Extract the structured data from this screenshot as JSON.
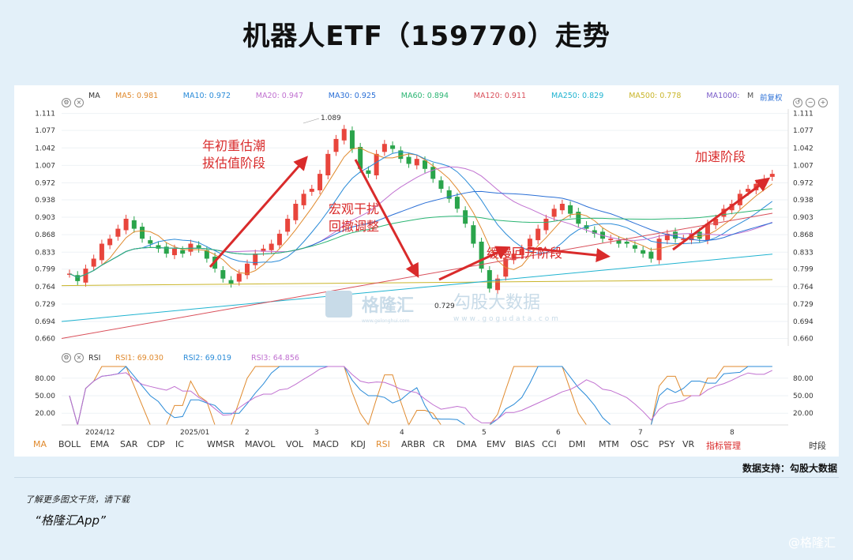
{
  "page": {
    "title": "机器人ETF（159770）走势",
    "credit": "数据支持：勾股大数据",
    "download_line1": "了解更多图文干货，请下载",
    "download_line2": "“格隆汇App”",
    "watermark_bottom_right": "@格隆汇",
    "watermark_center_1": "格隆汇",
    "watermark_center_1_sub": "www.gelonghui.com",
    "watermark_center_2": "勾股大数据",
    "watermark_center_2_sub": "w w w . g o g u d a t a . c o m"
  },
  "toolbar": {
    "ma_label": "MA",
    "items": [
      {
        "label": "MA5:",
        "value": "0.981",
        "color": "#e08a2e"
      },
      {
        "label": "MA10:",
        "value": "0.972",
        "color": "#2a8bd8"
      },
      {
        "label": "MA20:",
        "value": "0.947",
        "color": "#c070d0"
      },
      {
        "label": "MA30:",
        "value": "0.925",
        "color": "#2a6fd6"
      },
      {
        "label": "MA60:",
        "value": "0.894",
        "color": "#2bb573"
      },
      {
        "label": "MA120:",
        "value": "0.911",
        "color": "#d94f5a"
      },
      {
        "label": "MA250:",
        "value": "0.829",
        "color": "#1fb3d0"
      },
      {
        "label": "MA500:",
        "value": "0.778",
        "color": "#c9b52a"
      },
      {
        "label": "MA1000:",
        "value": "",
        "color": "#7a5cc9"
      }
    ],
    "right_m": "M",
    "right_label": "前复权"
  },
  "rsi_toolbar": {
    "label": "RSI",
    "items": [
      {
        "label": "RSI1:",
        "value": "69.030",
        "color": "#e08a2e"
      },
      {
        "label": "RSI2:",
        "value": "69.019",
        "color": "#2a8bd8"
      },
      {
        "label": "RSI3:",
        "value": "64.856",
        "color": "#c070d0"
      }
    ]
  },
  "indicators": [
    "MA",
    "BOLL",
    "EMA",
    "SAR",
    "CDP",
    "IC",
    "WMSR",
    "MAVOL",
    "VOL",
    "MACD",
    "KDJ",
    "RSI",
    "ARBR",
    "CR",
    "DMA",
    "EMV",
    "BIAS",
    "CCI",
    "DMI",
    "MTM",
    "OSC",
    "PSY",
    "VR",
    "指标管理",
    "时段"
  ],
  "chart_data": {
    "type": "candlestick",
    "title": "机器人ETF（159770）走势",
    "y_ticks": [
      "1.111",
      "1.077",
      "1.042",
      "1.007",
      "0.972",
      "0.938",
      "0.903",
      "0.868",
      "0.833",
      "0.799",
      "0.764",
      "0.729",
      "0.694",
      "0.660"
    ],
    "ylim": [
      0.645,
      1.12
    ],
    "x_ticks": [
      "2024/12",
      "2025/01",
      "2",
      "3",
      "4",
      "5",
      "6",
      "7",
      "8"
    ],
    "closes": [
      0.79,
      0.775,
      0.8,
      0.82,
      0.85,
      0.86,
      0.88,
      0.9,
      0.88,
      0.86,
      0.85,
      0.84,
      0.83,
      0.84,
      0.83,
      0.85,
      0.84,
      0.82,
      0.8,
      0.78,
      0.77,
      0.79,
      0.81,
      0.83,
      0.84,
      0.85,
      0.87,
      0.9,
      0.93,
      0.95,
      0.96,
      0.99,
      1.03,
      1.06,
      1.08,
      1.04,
      1.0,
      0.99,
      1.03,
      1.05,
      1.04,
      1.02,
      1.01,
      1.02,
      1.0,
      0.98,
      0.96,
      0.94,
      0.92,
      0.89,
      0.85,
      0.8,
      0.76,
      0.78,
      0.82,
      0.83,
      0.84,
      0.86,
      0.88,
      0.9,
      0.92,
      0.93,
      0.91,
      0.89,
      0.88,
      0.87,
      0.86,
      0.86,
      0.85,
      0.85,
      0.84,
      0.83,
      0.82,
      0.86,
      0.87,
      0.86,
      0.86,
      0.87,
      0.86,
      0.89,
      0.9,
      0.92,
      0.93,
      0.95,
      0.96,
      0.97,
      0.98,
      0.99
    ],
    "highest": "1.089",
    "lowest": "0.729",
    "annotations": [
      {
        "text_lines": [
          "年初重估潮",
          "拔估值阶段"
        ]
      },
      {
        "text_lines": [
          "宏观干扰",
          "回撤调整"
        ]
      },
      {
        "text_lines": [
          "缓慢回升阶段"
        ]
      },
      {
        "text_lines": [
          "加速阶段"
        ]
      }
    ],
    "rsi_ticks": [
      "80.00",
      "50.00",
      "20.00"
    ],
    "rsi_ylim": [
      0,
      100
    ]
  }
}
